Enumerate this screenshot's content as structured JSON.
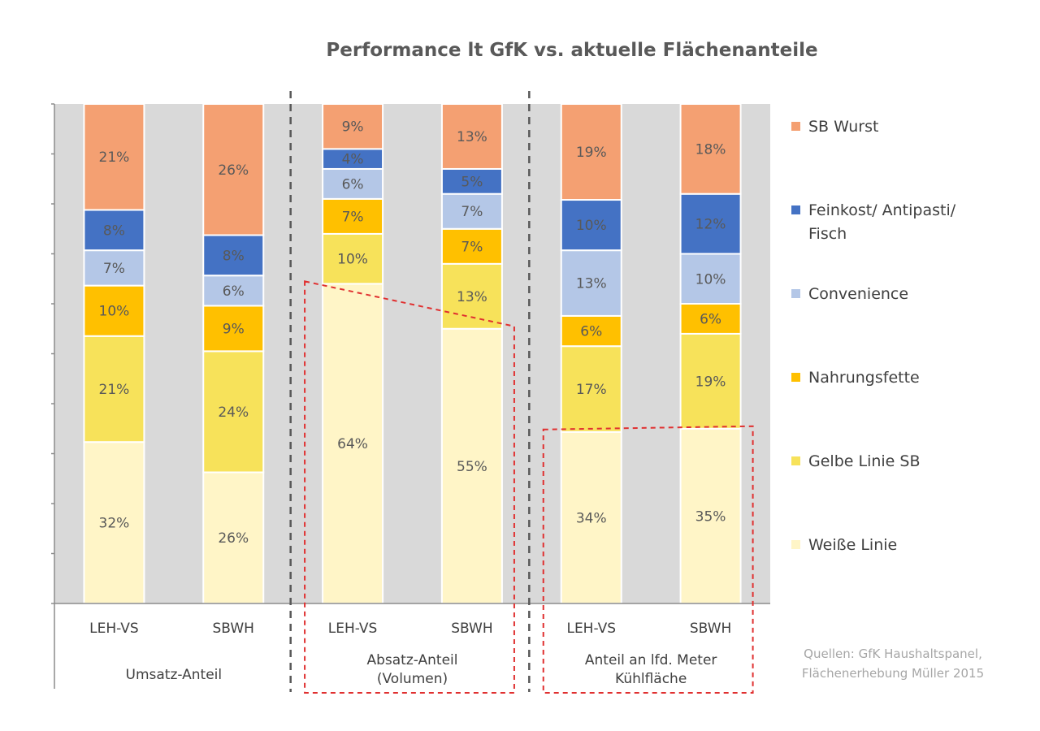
{
  "chart_data": {
    "type": "bar",
    "stacked": true,
    "normalized_percent": true,
    "title": "Performance lt GfK vs. aktuelle Flächenanteile",
    "groups": [
      {
        "label_lines": [
          "Umsatz-Anteil"
        ],
        "categories": [
          "LEH-VS",
          "SBWH"
        ],
        "highlighted": false
      },
      {
        "label_lines": [
          "Absatz-Anteil",
          "(Volumen)"
        ],
        "categories": [
          "LEH-VS",
          "SBWH"
        ],
        "highlighted": true
      },
      {
        "label_lines": [
          "Anteil an lfd. Meter",
          "Kühlfläche"
        ],
        "categories": [
          "LEH-VS",
          "SBWH"
        ],
        "highlighted": true
      }
    ],
    "series": [
      {
        "name": "Weiße Linie",
        "color": "#FFF5C7",
        "values": [
          32,
          26,
          64,
          55,
          34,
          35
        ]
      },
      {
        "name": "Gelbe Linie SB",
        "color": "#F7E25A",
        "values": [
          21,
          24,
          10,
          13,
          17,
          19
        ]
      },
      {
        "name": "Nahrungsfette",
        "color": "#FFC000",
        "values": [
          10,
          9,
          7,
          7,
          6,
          6
        ]
      },
      {
        "name": "Convenience",
        "color": "#B4C7E7",
        "values": [
          7,
          6,
          6,
          7,
          13,
          10
        ]
      },
      {
        "name": "Feinkost/ Antipasti/ Fisch",
        "color": "#4472C4",
        "values": [
          8,
          8,
          4,
          5,
          10,
          12
        ]
      },
      {
        "name": "SB Wurst",
        "color": "#F4A072",
        "values": [
          21,
          26,
          9,
          13,
          19,
          18
        ]
      }
    ],
    "legend_order": [
      "SB Wurst",
      "Feinkost/ Antipasti/ Fisch",
      "Convenience",
      "Nahrungsfette",
      "Gelbe Linie SB",
      "Weiße Linie"
    ],
    "legend_lines": [
      [
        "SB Wurst"
      ],
      [
        "Feinkost/ Antipasti/",
        "Fisch"
      ],
      [
        "Convenience"
      ],
      [
        "Nahrungsfette"
      ],
      [
        "Gelbe Linie SB"
      ],
      [
        "Weiße Linie"
      ]
    ],
    "legend_position": "right",
    "ylim": [
      0,
      100
    ],
    "grid": false,
    "source_lines": [
      "Quellen: GfK Haushaltspanel,",
      "Flächenerhebung Müller 2015"
    ]
  }
}
